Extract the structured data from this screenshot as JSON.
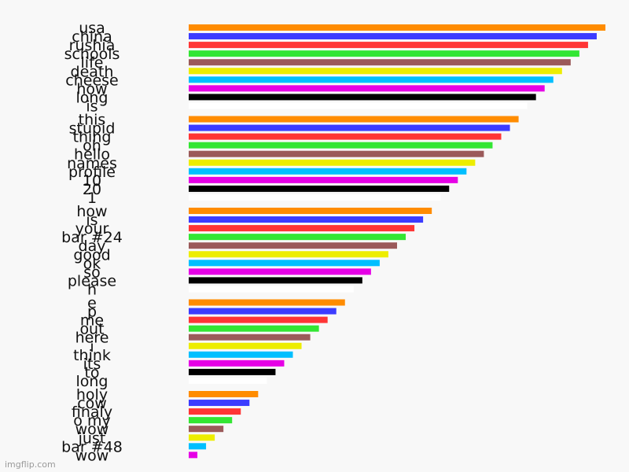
{
  "watermark": "imgflip.com",
  "chart_data": {
    "type": "bar",
    "orientation": "horizontal",
    "grid": false,
    "legend": "none",
    "xlim": [
      0,
      48
    ],
    "palette": [
      "#ff8c00",
      "#3c3cff",
      "#ff3535",
      "#33e633",
      "#9b5a5a",
      "#eded00",
      "#00bfff",
      "#e600e6",
      "#000000",
      "#ffffff"
    ],
    "categories": [
      "usa",
      "china",
      "rushia",
      "schools",
      "life",
      "death",
      "cheese",
      "how",
      "long",
      "is",
      "this",
      "stupid",
      "thing",
      "oh",
      "hello",
      "names",
      "profile",
      "10",
      "20",
      "1",
      "how",
      "is",
      "your",
      "bar #24",
      "day",
      "good",
      "ok",
      "so",
      "please",
      "h",
      "e",
      "p",
      "me",
      "out",
      "here",
      "i",
      "think",
      "its",
      "to",
      "long",
      "holy",
      "cow",
      "finaly",
      "o my",
      "wow",
      "just",
      "bar #48",
      "wow"
    ],
    "values": [
      48,
      47,
      46,
      45,
      44,
      43,
      42,
      41,
      40,
      39,
      38,
      37,
      36,
      35,
      34,
      33,
      32,
      31,
      30,
      29,
      28,
      27,
      26,
      25,
      24,
      23,
      22,
      21,
      20,
      19,
      18,
      17,
      16,
      15,
      14,
      13,
      12,
      11,
      10,
      9,
      8,
      7,
      6,
      5,
      4,
      3,
      2,
      1
    ]
  }
}
